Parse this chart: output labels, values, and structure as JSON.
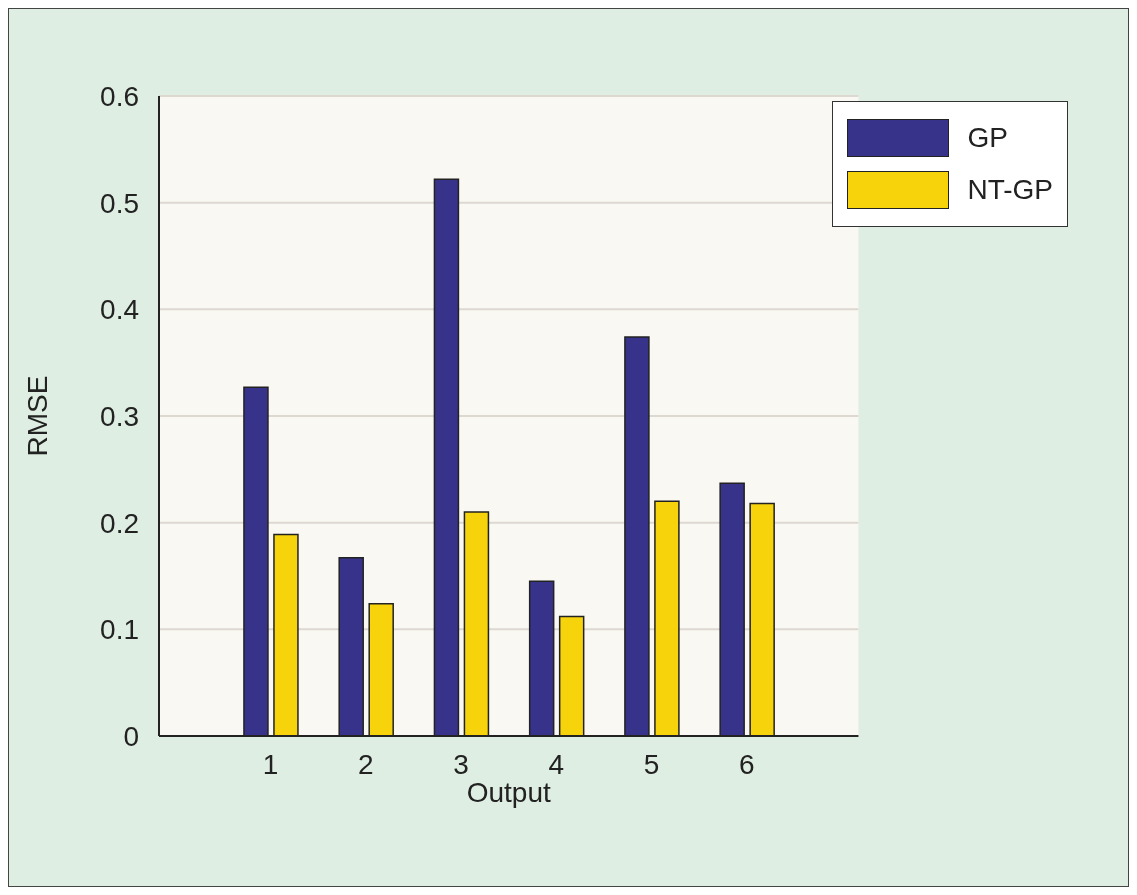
{
  "chart_data": {
    "type": "bar",
    "xlabel": "Output",
    "ylabel": "RMSE",
    "categories": [
      "1",
      "2",
      "3",
      "4",
      "5",
      "6"
    ],
    "series": [
      {
        "name": "GP",
        "color": "#38338a",
        "values": [
          0.327,
          0.167,
          0.522,
          0.145,
          0.374,
          0.237
        ]
      },
      {
        "name": "NT-GP",
        "color": "#f6d30a",
        "values": [
          0.189,
          0.124,
          0.21,
          0.112,
          0.22,
          0.218
        ]
      }
    ],
    "ylim": [
      0,
      0.6
    ],
    "yticks": [
      0,
      0.1,
      0.2,
      0.3,
      0.4,
      0.5,
      0.6
    ],
    "grid": "y",
    "legend": "top right"
  }
}
